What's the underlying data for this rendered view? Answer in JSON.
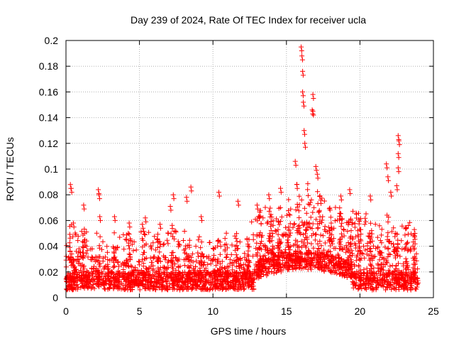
{
  "chart_data": {
    "type": "scatter",
    "title": "Day 239 of 2024, Rate Of TEC Index for receiver ucla",
    "xlabel": "GPS time / hours",
    "ylabel": "ROTI / TECUs",
    "xlim": [
      0,
      25
    ],
    "ylim": [
      0,
      0.2
    ],
    "x_ticks": [
      0,
      5,
      10,
      15,
      20,
      25
    ],
    "y_ticks": [
      0,
      0.02,
      0.04,
      0.06,
      0.08,
      0.1,
      0.12,
      0.14,
      0.16,
      0.18,
      0.2
    ],
    "x_tick_labels": [
      "0",
      "5",
      "10",
      "15",
      "20",
      "25"
    ],
    "y_tick_labels": [
      "0",
      "0.02",
      "0.04",
      "0.06",
      "0.08",
      "0.1",
      "0.12",
      "0.14",
      "0.16",
      "0.18",
      "0.2"
    ],
    "grid": true,
    "marker": "+",
    "color": "#ff0000",
    "series": [
      {
        "name": "ROTI",
        "peaks": [
          {
            "x": 0.3,
            "y": 0.088
          },
          {
            "x": 0.35,
            "y": 0.085
          },
          {
            "x": 0.5,
            "y": 0.058
          },
          {
            "x": 1.2,
            "y": 0.072
          },
          {
            "x": 2.2,
            "y": 0.084
          },
          {
            "x": 2.25,
            "y": 0.08
          },
          {
            "x": 2.3,
            "y": 0.063
          },
          {
            "x": 3.3,
            "y": 0.063
          },
          {
            "x": 4.3,
            "y": 0.058
          },
          {
            "x": 5.2,
            "y": 0.057
          },
          {
            "x": 5.4,
            "y": 0.062
          },
          {
            "x": 6.4,
            "y": 0.057
          },
          {
            "x": 7.1,
            "y": 0.071
          },
          {
            "x": 7.3,
            "y": 0.08
          },
          {
            "x": 8.2,
            "y": 0.078
          },
          {
            "x": 8.5,
            "y": 0.086
          },
          {
            "x": 9.2,
            "y": 0.063
          },
          {
            "x": 10.4,
            "y": 0.082
          },
          {
            "x": 11.7,
            "y": 0.075
          },
          {
            "x": 13.0,
            "y": 0.072
          },
          {
            "x": 13.8,
            "y": 0.08
          },
          {
            "x": 14.6,
            "y": 0.085
          },
          {
            "x": 15.6,
            "y": 0.106
          },
          {
            "x": 15.7,
            "y": 0.088
          },
          {
            "x": 16.0,
            "y": 0.195
          },
          {
            "x": 16.05,
            "y": 0.188
          },
          {
            "x": 16.1,
            "y": 0.176
          },
          {
            "x": 16.1,
            "y": 0.16
          },
          {
            "x": 16.15,
            "y": 0.152
          },
          {
            "x": 16.2,
            "y": 0.13
          },
          {
            "x": 16.25,
            "y": 0.12
          },
          {
            "x": 16.8,
            "y": 0.158
          },
          {
            "x": 16.75,
            "y": 0.146
          },
          {
            "x": 16.8,
            "y": 0.145
          },
          {
            "x": 17.0,
            "y": 0.102
          },
          {
            "x": 17.1,
            "y": 0.096
          },
          {
            "x": 18.7,
            "y": 0.079
          },
          {
            "x": 19.3,
            "y": 0.084
          },
          {
            "x": 20.7,
            "y": 0.079
          },
          {
            "x": 21.8,
            "y": 0.104
          },
          {
            "x": 21.9,
            "y": 0.094
          },
          {
            "x": 22.1,
            "y": 0.082
          },
          {
            "x": 22.5,
            "y": 0.087
          },
          {
            "x": 22.6,
            "y": 0.126
          },
          {
            "x": 22.65,
            "y": 0.122
          },
          {
            "x": 22.6,
            "y": 0.112
          },
          {
            "x": 22.6,
            "y": 0.101
          },
          {
            "x": 23.7,
            "y": 0.053
          }
        ],
        "baseline_range": [
          0.005,
          0.035
        ],
        "note": "Dense background cloud of ROTI values roughly between 0.005 and 0.04 TECUs across 0-24 h, elevated to ~0.04-0.07 between 13 h and 20 h."
      }
    ]
  }
}
